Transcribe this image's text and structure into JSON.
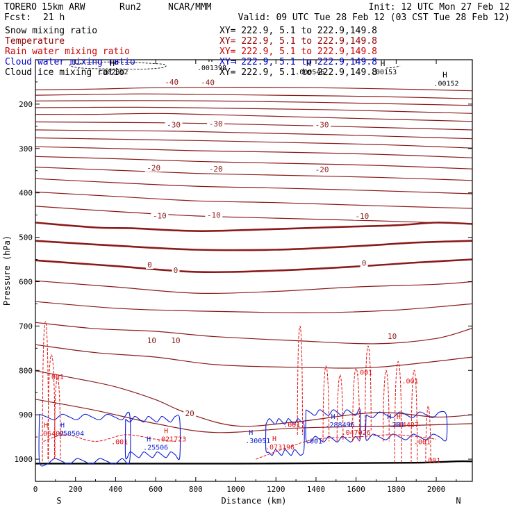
{
  "header": {
    "model": "TORERO",
    "resolution": "15km ARW",
    "run": "Run2",
    "org": "NCAR/MMM",
    "init": "Init: 12 UTC Mon 27 Feb 12",
    "fcst_label": "Fcst:",
    "fcst_value": "21 h",
    "valid": "Valid: 09 UTC Tue 28 Feb 12 (03 CST Tue 28 Feb 12)"
  },
  "legend": [
    {
      "name": "Snow mixing ratio",
      "color": "#000000",
      "xy": "XY= 222.9,  5.1 to 222.9,149.8"
    },
    {
      "name": "Temperature",
      "color": "#8b0000",
      "xy": "XY= 222.9,  5.1 to 222.9,149.8"
    },
    {
      "name": "Rain water mixing ratio",
      "color": "#cc0000",
      "xy": "XY= 222.9,  5.1 to 222.9,149.8"
    },
    {
      "name": "Cloud water mixing ratio",
      "color": "#0000cc",
      "xy": "XY= 222.9,  5.1 to 222.9,149.8"
    },
    {
      "name": "Cloud ice mixing ratio",
      "color": "#000000",
      "xy": "XY= 222.9,  5.1 to 222.9,149.8"
    }
  ],
  "chart_data": {
    "type": "contour-cross-section",
    "xlabel": "Distance (km)",
    "ylabel": "Pressure (hPa)",
    "xlim": [
      0,
      2180
    ],
    "ylim": [
      1050,
      100
    ],
    "x_ticks": [
      0,
      200,
      400,
      600,
      800,
      1000,
      1200,
      1400,
      1600,
      1800,
      2000
    ],
    "y_ticks": [
      200,
      300,
      400,
      500,
      600,
      700,
      800,
      900,
      1000
    ],
    "x_end_labels": {
      "left": "S",
      "right": "N"
    },
    "temperature_contours": [
      {
        "level": -40,
        "points": [
          [
            0,
            168
          ],
          [
            300,
            166
          ],
          [
            600,
            163
          ],
          [
            1000,
            162
          ],
          [
            1400,
            163
          ],
          [
            1800,
            166
          ],
          [
            2180,
            170
          ]
        ]
      },
      {
        "level": -40,
        "points": [
          [
            0,
            180
          ],
          [
            500,
            177
          ],
          [
            800,
            178
          ],
          [
            1200,
            180
          ],
          [
            1700,
            183
          ],
          [
            2180,
            188
          ]
        ]
      },
      {
        "level": -40,
        "points": [
          [
            0,
            193
          ],
          [
            500,
            192
          ],
          [
            900,
            193
          ],
          [
            1400,
            196
          ],
          [
            2180,
            203
          ]
        ]
      },
      {
        "level": -40,
        "points": [
          [
            0,
            208
          ],
          [
            500,
            207
          ],
          [
            900,
            209
          ],
          [
            1500,
            213
          ],
          [
            2180,
            221
          ]
        ]
      },
      {
        "level": -40,
        "points": [
          [
            0,
            223
          ],
          [
            300,
            223
          ],
          [
            600,
            221
          ],
          [
            900,
            224
          ],
          [
            1500,
            231
          ],
          [
            2180,
            239
          ]
        ]
      },
      {
        "level": -30,
        "points": [
          [
            0,
            240
          ],
          [
            300,
            241
          ],
          [
            600,
            242
          ],
          [
            900,
            244
          ],
          [
            1400,
            249
          ],
          [
            2180,
            258
          ]
        ]
      },
      {
        "level": -30,
        "points": [
          [
            0,
            258
          ],
          [
            400,
            260
          ],
          [
            700,
            261
          ],
          [
            1000,
            264
          ],
          [
            1500,
            269
          ],
          [
            2180,
            278
          ]
        ]
      },
      {
        "level": -30,
        "points": [
          [
            0,
            276
          ],
          [
            400,
            279
          ],
          [
            800,
            282
          ],
          [
            1200,
            286
          ],
          [
            1700,
            291
          ],
          [
            2180,
            299
          ]
        ]
      },
      {
        "level": -20,
        "points": [
          [
            0,
            296
          ],
          [
            400,
            300
          ],
          [
            800,
            305
          ],
          [
            1200,
            308
          ],
          [
            1700,
            313
          ],
          [
            2180,
            321
          ]
        ]
      },
      {
        "level": -20,
        "points": [
          [
            0,
            318
          ],
          [
            400,
            323
          ],
          [
            800,
            329
          ],
          [
            1200,
            333
          ],
          [
            1700,
            338
          ],
          [
            2180,
            346
          ]
        ]
      },
      {
        "level": -20,
        "points": [
          [
            0,
            342
          ],
          [
            400,
            349
          ],
          [
            800,
            356
          ],
          [
            1200,
            360
          ],
          [
            1700,
            365
          ],
          [
            2180,
            372
          ]
        ]
      },
      {
        "level": -10,
        "points": [
          [
            0,
            368
          ],
          [
            400,
            377
          ],
          [
            800,
            385
          ],
          [
            1200,
            389
          ],
          [
            1700,
            395
          ],
          [
            2180,
            402
          ]
        ]
      },
      {
        "level": -10,
        "points": [
          [
            0,
            398
          ],
          [
            400,
            408
          ],
          [
            800,
            418
          ],
          [
            1200,
            422
          ],
          [
            1700,
            429
          ],
          [
            2180,
            435
          ]
        ]
      },
      {
        "level": -10,
        "points": [
          [
            0,
            430
          ],
          [
            400,
            442
          ],
          [
            800,
            452
          ],
          [
            1200,
            457
          ],
          [
            1700,
            463
          ],
          [
            2180,
            470
          ]
        ]
      },
      {
        "level": 0,
        "points": [
          [
            0,
            467
          ],
          [
            300,
            478
          ],
          [
            500,
            480
          ],
          [
            800,
            486
          ],
          [
            1100,
            483
          ],
          [
            1500,
            477
          ],
          [
            1800,
            473
          ],
          [
            2000,
            467
          ],
          [
            2180,
            470
          ]
        ]
      },
      {
        "level": 0,
        "points": [
          [
            0,
            508
          ],
          [
            400,
            519
          ],
          [
            800,
            528
          ],
          [
            1200,
            528
          ],
          [
            1600,
            520
          ],
          [
            1900,
            512
          ],
          [
            2180,
            508
          ]
        ]
      },
      {
        "level": 0,
        "points": [
          [
            0,
            552
          ],
          [
            400,
            565
          ],
          [
            800,
            578
          ],
          [
            1200,
            575
          ],
          [
            1600,
            566
          ],
          [
            1900,
            557
          ],
          [
            2180,
            550
          ]
        ]
      },
      {
        "level": 10,
        "points": [
          [
            0,
            598
          ],
          [
            400,
            612
          ],
          [
            800,
            626
          ],
          [
            1200,
            622
          ],
          [
            1600,
            612
          ],
          [
            2000,
            606
          ],
          [
            2180,
            600
          ]
        ]
      },
      {
        "level": 10,
        "points": [
          [
            0,
            645
          ],
          [
            400,
            660
          ],
          [
            700,
            665
          ],
          [
            1000,
            668
          ],
          [
            1400,
            670
          ],
          [
            1800,
            664
          ],
          [
            2180,
            650
          ]
        ]
      },
      {
        "level": 10,
        "points": [
          [
            0,
            692
          ],
          [
            300,
            706
          ],
          [
            600,
            712
          ],
          [
            900,
            724
          ],
          [
            1300,
            733
          ],
          [
            1700,
            740
          ],
          [
            2000,
            728
          ],
          [
            2180,
            705
          ]
        ]
      },
      {
        "level": 10,
        "points": [
          [
            0,
            742
          ],
          [
            300,
            760
          ],
          [
            600,
            770
          ],
          [
            900,
            787
          ],
          [
            1300,
            793
          ],
          [
            1700,
            793
          ],
          [
            2180,
            770
          ]
        ]
      },
      {
        "level": 20,
        "points": [
          [
            0,
            801
          ],
          [
            200,
            818
          ],
          [
            400,
            837
          ],
          [
            600,
            866
          ],
          [
            750,
            895
          ],
          [
            1000,
            925
          ],
          [
            1300,
            916
          ],
          [
            1700,
            895
          ],
          [
            2000,
            905
          ],
          [
            2180,
            900
          ]
        ]
      },
      {
        "level": 20,
        "points": [
          [
            0,
            865
          ],
          [
            300,
            890
          ],
          [
            600,
            920
          ],
          [
            900,
            940
          ],
          [
            1300,
            930
          ],
          [
            1800,
            925
          ],
          [
            2180,
            920
          ]
        ]
      }
    ],
    "temperature_labels": [
      {
        "text": "-40",
        "x": 680,
        "y": 150
      },
      {
        "text": "-40",
        "x": 860,
        "y": 151
      },
      {
        "text": "-30",
        "x": 690,
        "y": 246
      },
      {
        "text": "-30",
        "x": 900,
        "y": 244
      },
      {
        "text": "-30",
        "x": 1430,
        "y": 246
      },
      {
        "text": "-20",
        "x": 590,
        "y": 343
      },
      {
        "text": "-20",
        "x": 900,
        "y": 346
      },
      {
        "text": "-20",
        "x": 1430,
        "y": 347
      },
      {
        "text": "-10",
        "x": 620,
        "y": 451
      },
      {
        "text": "-10",
        "x": 890,
        "y": 450
      },
      {
        "text": "-10",
        "x": 1630,
        "y": 452
      },
      {
        "text": "0",
        "x": 570,
        "y": 562
      },
      {
        "text": "0",
        "x": 700,
        "y": 574
      },
      {
        "text": "0",
        "x": 1640,
        "y": 558
      },
      {
        "text": "10",
        "x": 580,
        "y": 732
      },
      {
        "text": "10",
        "x": 700,
        "y": 732
      },
      {
        "text": "10",
        "x": 1780,
        "y": 723
      },
      {
        "text": "20",
        "x": 770,
        "y": 897
      }
    ],
    "cloud_ice_maxima": [
      {
        "value": ".002392",
        "x": 390,
        "y": 117
      },
      {
        "value": ".001398",
        "x": 880,
        "y": 108
      },
      {
        "value": ".000546",
        "x": 1370,
        "y": 117
      },
      {
        "value": ".00153",
        "x": 1740,
        "y": 117
      },
      {
        "value": ".00152",
        "x": 2050,
        "y": 143
      }
    ],
    "rain_water_labels": [
      {
        "text": ".001",
        "x": 100,
        "y": 820
      },
      {
        "text": ".001",
        "x": 1640,
        "y": 810
      },
      {
        "text": ".001",
        "x": 1870,
        "y": 829
      },
      {
        "text": ".001",
        "x": 1280,
        "y": 928
      },
      {
        "text": ".001",
        "x": 420,
        "y": 966
      },
      {
        "text": ".001",
        "x": 1930,
        "y": 966
      },
      {
        "text": ".001",
        "x": 1980,
        "y": 1008
      }
    ],
    "rain_water_maxima": [
      {
        "value": ".06402",
        "x": 80,
        "y": 944
      },
      {
        "value": ".021723",
        "x": 680,
        "y": 957
      },
      {
        "value": ".073196",
        "x": 1220,
        "y": 975
      },
      {
        "value": ".047026",
        "x": 1600,
        "y": 942
      },
      {
        "value": ".014427",
        "x": 1840,
        "y": 925
      }
    ],
    "cloud_water_maxima": [
      {
        "value": ".050504",
        "x": 170,
        "y": 944
      },
      {
        "value": ".25506",
        "x": 600,
        "y": 976
      },
      {
        "value": ".30051",
        "x": 1110,
        "y": 961
      },
      {
        "value": ".288496",
        "x": 1520,
        "y": 925
      },
      {
        "value": ".201",
        "x": 1800,
        "y": 925
      }
    ],
    "snow_labels": [
      {
        "text": ".001",
        "x": 1390,
        "y": 965
      }
    ],
    "rain_water_columns": [
      {
        "x": 50,
        "ptop": 690,
        "pbot": 1005,
        "w": 30
      },
      {
        "x": 80,
        "ptop": 765,
        "pbot": 1000,
        "w": 35
      },
      {
        "x": 110,
        "ptop": 815,
        "pbot": 1000,
        "w": 30
      },
      {
        "x": 1320,
        "ptop": 700,
        "pbot": 945,
        "w": 25
      },
      {
        "x": 1450,
        "ptop": 790,
        "pbot": 960,
        "w": 30
      },
      {
        "x": 1520,
        "ptop": 810,
        "pbot": 960,
        "w": 30
      },
      {
        "x": 1600,
        "ptop": 795,
        "pbot": 960,
        "w": 35
      },
      {
        "x": 1660,
        "ptop": 745,
        "pbot": 935,
        "w": 30
      },
      {
        "x": 1750,
        "ptop": 800,
        "pbot": 960,
        "w": 30
      },
      {
        "x": 1810,
        "ptop": 780,
        "pbot": 1008,
        "w": 35
      },
      {
        "x": 1890,
        "ptop": 800,
        "pbot": 1008,
        "w": 30
      },
      {
        "x": 1960,
        "ptop": 880,
        "pbot": 1008,
        "w": 25
      }
    ],
    "cloud_water_blobs": [
      {
        "x": [
          20,
          470
        ],
        "ptop": 905,
        "pbot": 1005
      },
      {
        "x": [
          450,
          720
        ],
        "ptop": 910,
        "pbot": 990
      },
      {
        "x": [
          1150,
          1340
        ],
        "ptop": 915,
        "pbot": 985
      },
      {
        "x": [
          1350,
          1620
        ],
        "ptop": 895,
        "pbot": 955
      },
      {
        "x": [
          1650,
          2050
        ],
        "ptop": 900,
        "pbot": 950
      }
    ],
    "surface_pressure": [
      [
        0,
        1010
      ],
      [
        500,
        1010
      ],
      [
        1000,
        1010
      ],
      [
        1500,
        1009
      ],
      [
        1900,
        1008
      ],
      [
        2100,
        1005
      ],
      [
        2180,
        1005
      ]
    ]
  }
}
